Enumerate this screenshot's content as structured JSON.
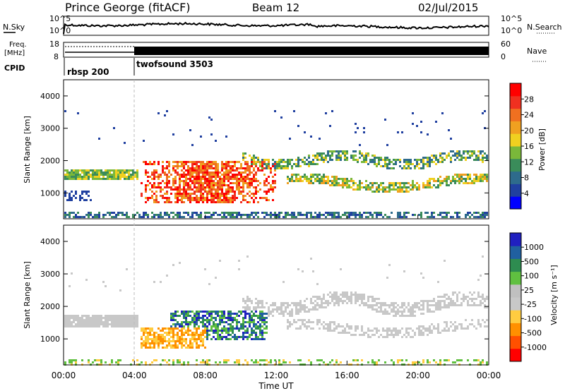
{
  "header": {
    "title": "Prince George (fitACF)",
    "beam": "Beam 12",
    "date": "02/Jul/2015"
  },
  "noise_panel": {
    "left_label": "N.Sky",
    "right_label": "N.Search",
    "ticks": [
      {
        "base": "10",
        "exp": "^5"
      },
      {
        "base": "10",
        "exp": "^0"
      }
    ]
  },
  "freq_panel": {
    "left_label_line1": "Freq.",
    "left_label_line2": "[MHz]",
    "left_ticks": [
      "18",
      "8"
    ],
    "right_label": "Nave",
    "right_ticks": [
      "60",
      "0"
    ]
  },
  "cpid_panel": {
    "label": "CPID",
    "segments": [
      {
        "name": "rbsp 200",
        "start_hour": 0
      },
      {
        "name": "twofsound 3503",
        "start_hour": 4
      }
    ]
  },
  "x_axis": {
    "label": "Time UT",
    "ticks": [
      "00:00",
      "04:00",
      "08:00",
      "12:00",
      "16:00",
      "20:00",
      "00:00"
    ],
    "range_hours": [
      0,
      24
    ]
  },
  "colors": {
    "power": [
      "#0000ff",
      "#2040a0",
      "#2e6b8c",
      "#3a8c5a",
      "#7ab83a",
      "#f0d020",
      "#f0a020",
      "#f07020",
      "#f03020",
      "#ff0000"
    ],
    "velocity": [
      "#ff0000",
      "#ff5000",
      "#ff9000",
      "#ffcc40",
      "#c8c8c8",
      "#c0c0c0",
      "#60c040",
      "#2e8c50",
      "#2060a0",
      "#2020c0"
    ]
  },
  "chart_data": [
    {
      "type": "heatmap",
      "title": "",
      "ylabel": "Slant Range [km]",
      "ylim": [
        200,
        4500
      ],
      "yticks": [
        1000,
        2000,
        3000,
        4000
      ],
      "xlim": [
        0,
        24
      ],
      "colorbar": {
        "label": "Power [dB]",
        "ticks": [
          "4",
          "8",
          "12",
          "16",
          "20",
          "24",
          "28"
        ],
        "range": [
          0,
          32
        ]
      },
      "features": [
        {
          "name": "near-range band",
          "start_hour": 0,
          "end_hour": 24,
          "range_km": [
            300,
            450
          ],
          "value": 8
        },
        {
          "name": "persistent echo band",
          "start_hour": 0,
          "end_hour": 4,
          "range_km": [
            1400,
            1800
          ],
          "value": 16
        },
        {
          "name": "intense echoes",
          "start_hour": 4.5,
          "end_hour": 12,
          "range_km": [
            700,
            2000
          ],
          "value": 28
        },
        {
          "name": "upper band",
          "start_hour": 12,
          "end_hour": 24,
          "range_km": [
            1800,
            2500
          ],
          "value": 12
        },
        {
          "name": "lower band",
          "start_hour": 16,
          "end_hour": 24,
          "range_km": [
            1000,
            1700
          ],
          "value": 20
        }
      ]
    },
    {
      "type": "heatmap",
      "title": "",
      "ylabel": "Slant Range [km]",
      "ylim": [
        200,
        4500
      ],
      "yticks": [
        1000,
        2000,
        3000,
        4000
      ],
      "xlim": [
        0,
        24
      ],
      "colorbar": {
        "label": "Velocity [m s⁻¹]",
        "ticks": [
          "1000",
          "500",
          "100",
          "25",
          "-25",
          "-100",
          "-500",
          "-1000"
        ],
        "range": [
          -1000,
          1000
        ]
      },
      "features": [
        {
          "name": "ground scatter band",
          "start_hour": 0,
          "end_hour": 4,
          "range_km": [
            1300,
            1800
          ],
          "value": 0
        },
        {
          "name": "negative velocity echoes",
          "start_hour": 4.5,
          "end_hour": 8,
          "range_km": [
            700,
            1400
          ],
          "value": -300
        },
        {
          "name": "positive velocity echoes",
          "start_hour": 8,
          "end_hour": 11,
          "range_km": [
            1000,
            1900
          ],
          "value": 300
        },
        {
          "name": "ground scatter upper",
          "start_hour": 12,
          "end_hour": 24,
          "range_km": [
            1800,
            2600
          ],
          "value": 0
        },
        {
          "name": "near-range mixed",
          "start_hour": 10,
          "end_hour": 24,
          "range_km": [
            300,
            600
          ],
          "value": 100
        }
      ]
    }
  ]
}
